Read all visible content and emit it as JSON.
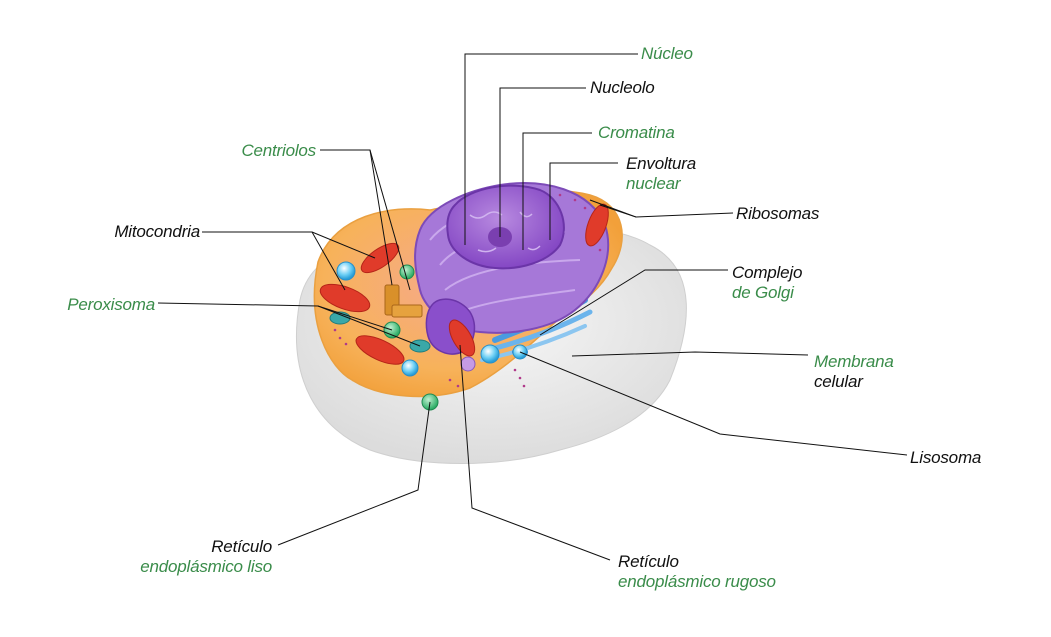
{
  "colors": {
    "membrane": "#e6e6e6",
    "cytoplasm": "#f7b25a",
    "nucleus": "#9b5fcf",
    "nucleolus": "#7a3fb0",
    "mitochondria": "#e03b2a",
    "lysosome": "#39b6e8",
    "peroxisome": "#3bbf7a",
    "centriole": "#d9902a",
    "golgi": "#5aa8e6",
    "label_dark": "#111111",
    "label_green": "#3a8c4a"
  },
  "labels": {
    "nucleo": "Núcleo",
    "nucleolo": "Nucleolo",
    "cromatina": "Cromatina",
    "envoltura_1": "Envoltura",
    "envoltura_2": "nuclear",
    "centriolos": "Centriolos",
    "ribosomas": "Ribosomas",
    "mitocondria": "Mitocondria",
    "golgi_1": "Complejo",
    "golgi_2": "de Golgi",
    "peroxisoma": "Peroxisoma",
    "membrana_1": "Membrana",
    "membrana_2": "celular",
    "lisosoma": "Lisosoma",
    "rel_1": "Retículo",
    "rel_2": "endoplásmico liso",
    "rer_1": "Retículo",
    "rer_2": "endoplásmico rugoso"
  }
}
